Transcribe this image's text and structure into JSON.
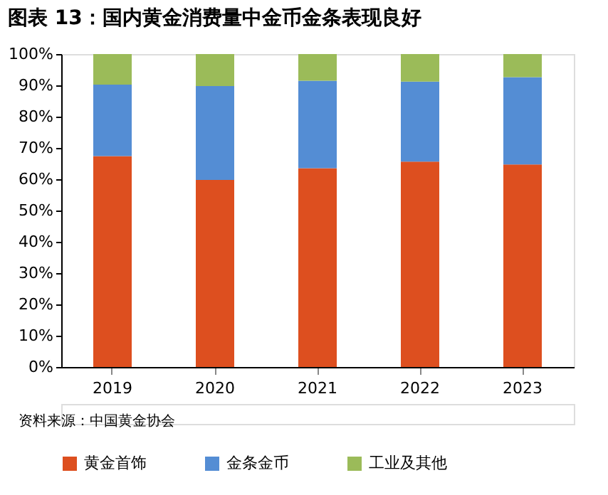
{
  "chart_data": {
    "type": "bar",
    "stacked": true,
    "title": "图表 13：国内黄金消费量中金币金条表现良好",
    "categories": [
      "2019",
      "2020",
      "2021",
      "2022",
      "2023"
    ],
    "series": [
      {
        "name": "黄金首饰",
        "color": "#dd4f1f",
        "values": [
          67.4,
          59.8,
          63.5,
          65.6,
          64.7
        ]
      },
      {
        "name": "金条金币",
        "color": "#548dd4",
        "values": [
          22.8,
          30.0,
          28.0,
          25.6,
          27.9
        ]
      },
      {
        "name": "工业及其他",
        "color": "#9bbb59",
        "values": [
          9.8,
          10.2,
          8.5,
          8.8,
          7.4
        ]
      }
    ],
    "ylim": [
      0,
      100
    ],
    "yticks": [
      {
        "value": 0,
        "label": "0%"
      },
      {
        "value": 10,
        "label": "10%"
      },
      {
        "value": 20,
        "label": "20%"
      },
      {
        "value": 30,
        "label": "30%"
      },
      {
        "value": 40,
        "label": "40%"
      },
      {
        "value": 50,
        "label": "50%"
      },
      {
        "value": 60,
        "label": "60%"
      },
      {
        "value": 70,
        "label": "70%"
      },
      {
        "value": 80,
        "label": "80%"
      },
      {
        "value": 90,
        "label": "90%"
      },
      {
        "value": 100,
        "label": "100%"
      }
    ],
    "grid": false,
    "legend": "bottom",
    "annotations": [
      "资料来源：中国黄金协会"
    ]
  }
}
